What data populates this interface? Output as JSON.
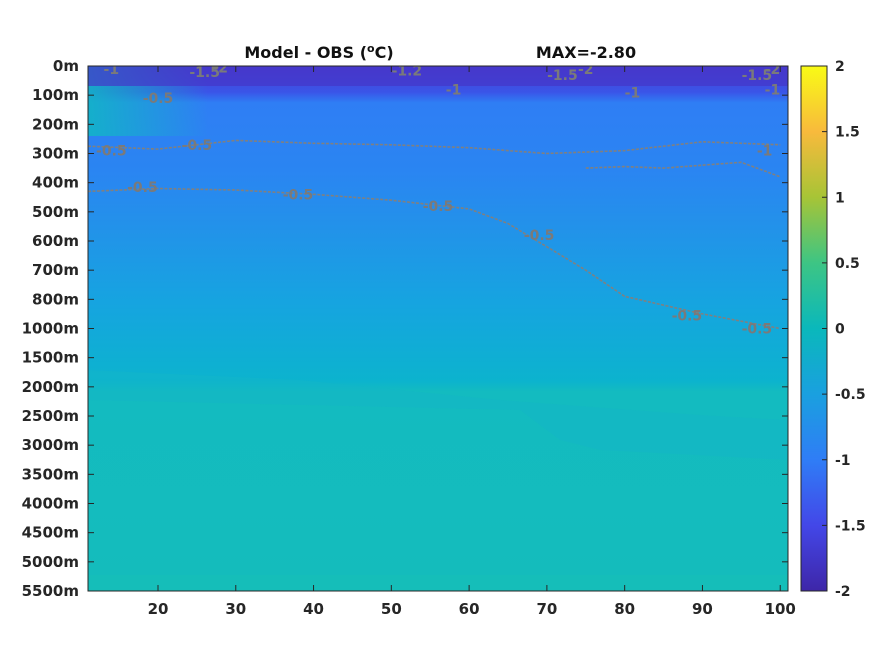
{
  "chart_data": {
    "type": "heatmap",
    "title": "Model - OBS (",
    "title_unit_sup": "o",
    "title_unit_tail": "C)",
    "max_label": "MAX=-2.80",
    "x_ticks": [
      "20",
      "30",
      "40",
      "50",
      "60",
      "70",
      "80",
      "90",
      "100"
    ],
    "x_tick_values": [
      20,
      30,
      40,
      50,
      60,
      70,
      80,
      90,
      100
    ],
    "xlim": [
      11,
      101
    ],
    "y_ticks": [
      "0m",
      "100m",
      "200m",
      "300m",
      "400m",
      "500m",
      "600m",
      "700m",
      "800m",
      "1000m",
      "1500m",
      "2000m",
      "2500m",
      "3000m",
      "3500m",
      "4000m",
      "4500m",
      "5000m",
      "5500m"
    ],
    "colorbar": {
      "min": -2,
      "max": 2,
      "ticks": [
        "2",
        "1.5",
        "1",
        "0.5",
        "0",
        "-0.5",
        "-1",
        "-1.5",
        "-2"
      ],
      "tick_values": [
        2,
        1.5,
        1,
        0.5,
        0,
        -0.5,
        -1,
        -1.5,
        -2
      ],
      "colormap": "parula"
    },
    "contour_color": "#808080",
    "contours": [
      {
        "level": -0.5,
        "label": "-0.5",
        "points": [
          [
            11,
            275
          ],
          [
            20,
            285
          ],
          [
            30,
            255
          ],
          [
            40,
            265
          ],
          [
            50,
            270
          ],
          [
            60,
            280
          ],
          [
            70,
            300
          ],
          [
            80,
            290
          ],
          [
            90,
            260
          ],
          [
            100,
            270
          ]
        ]
      },
      {
        "level": -0.5,
        "label": "-0.5",
        "points": [
          [
            11,
            430
          ],
          [
            20,
            420
          ],
          [
            30,
            425
          ],
          [
            40,
            440
          ],
          [
            50,
            460
          ],
          [
            60,
            490
          ],
          [
            65,
            540
          ],
          [
            70,
            620
          ],
          [
            75,
            700
          ],
          [
            80,
            790
          ],
          [
            90,
            900
          ],
          [
            100,
            1000
          ]
        ]
      },
      {
        "level": -1,
        "label": "-1",
        "points": [
          [
            75,
            350
          ],
          [
            80,
            345
          ],
          [
            85,
            350
          ],
          [
            90,
            340
          ],
          [
            95,
            330
          ],
          [
            100,
            380
          ]
        ]
      }
    ],
    "contour_labels": [
      {
        "text": "-1",
        "x": 14,
        "y": 10
      },
      {
        "text": "-0.5",
        "x": 20,
        "y": 110
      },
      {
        "text": "-1.5",
        "x": 26,
        "y": 20
      },
      {
        "text": "-2",
        "x": 28,
        "y": 5
      },
      {
        "text": "-0.5",
        "x": 25,
        "y": 270
      },
      {
        "text": "-0.5",
        "x": 14,
        "y": 290
      },
      {
        "text": "-1.2",
        "x": 52,
        "y": 15
      },
      {
        "text": "-1.5",
        "x": 72,
        "y": 30
      },
      {
        "text": "-1",
        "x": 81,
        "y": 90
      },
      {
        "text": "-1",
        "x": 58,
        "y": 80
      },
      {
        "text": "-2",
        "x": 75,
        "y": 10
      },
      {
        "text": "-1.5",
        "x": 97,
        "y": 30
      },
      {
        "text": "-1",
        "x": 99,
        "y": 80
      },
      {
        "text": "-2",
        "x": 99,
        "y": 10
      },
      {
        "text": "-1",
        "x": 98,
        "y": 290
      },
      {
        "text": "-0.5",
        "x": 18,
        "y": 415
      },
      {
        "text": "-0.5",
        "x": 38,
        "y": 440
      },
      {
        "text": "-0.5",
        "x": 56,
        "y": 480
      },
      {
        "text": "-0.5",
        "x": 69,
        "y": 580
      },
      {
        "text": "-0.5",
        "x": 88,
        "y": 910
      },
      {
        "text": "-0.5",
        "x": 97,
        "y": 1000
      }
    ]
  }
}
